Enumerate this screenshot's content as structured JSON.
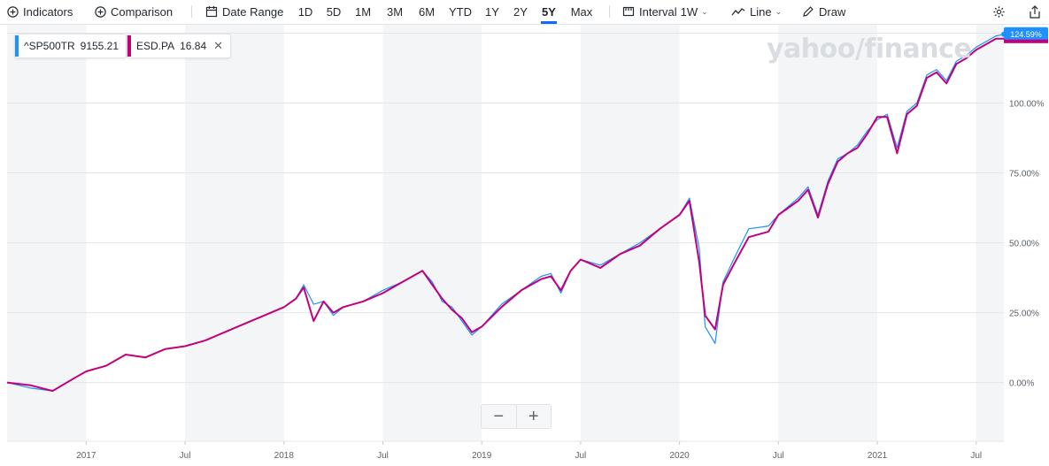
{
  "toolbar": {
    "indicators": "Indicators",
    "comparison": "Comparison",
    "date_range": "Date Range",
    "ranges": [
      "1D",
      "5D",
      "1M",
      "3M",
      "6M",
      "YTD",
      "1Y",
      "2Y",
      "5Y",
      "Max"
    ],
    "active_range": "5Y",
    "interval": "Interval",
    "interval_value": "1W",
    "chart_type": "Line",
    "draw": "Draw"
  },
  "legend": [
    {
      "symbol": "^SP500TR",
      "value": "9155.21",
      "color": "#1e90ff"
    },
    {
      "symbol": "ESD.PA",
      "value": "16.84",
      "color": "#c2007c"
    }
  ],
  "watermark": "yahoo/finance",
  "zoom": {
    "minus": "−",
    "plus": "+"
  },
  "chart_data": {
    "type": "line",
    "yaxis_ticks": [
      "0.00%",
      "25.00%",
      "50.00%",
      "75.00%",
      "100.00%"
    ],
    "xaxis_ticks": [
      "2017",
      "Jul",
      "2018",
      "Jul",
      "2019",
      "Jul",
      "2020",
      "Jul",
      "2021",
      "Jul"
    ],
    "ylim": [
      -21,
      128
    ],
    "xlim": [
      2016.6,
      2021.64
    ],
    "last_label": "124.59%",
    "series": [
      {
        "name": "^SP500TR",
        "color": "#1e90ff",
        "x": [
          2016.6,
          2016.72,
          2016.83,
          2016.95,
          2017.0,
          2017.1,
          2017.2,
          2017.3,
          2017.4,
          2017.5,
          2017.6,
          2017.7,
          2017.8,
          2017.9,
          2018.0,
          2018.06,
          2018.1,
          2018.15,
          2018.2,
          2018.25,
          2018.3,
          2018.4,
          2018.5,
          2018.6,
          2018.7,
          2018.75,
          2018.8,
          2018.85,
          2018.9,
          2018.95,
          2019.0,
          2019.1,
          2019.2,
          2019.3,
          2019.35,
          2019.4,
          2019.45,
          2019.5,
          2019.6,
          2019.7,
          2019.8,
          2019.9,
          2020.0,
          2020.05,
          2020.1,
          2020.13,
          2020.18,
          2020.22,
          2020.28,
          2020.35,
          2020.45,
          2020.5,
          2020.6,
          2020.65,
          2020.7,
          2020.75,
          2020.8,
          2020.85,
          2020.9,
          2020.95,
          2021.0,
          2021.05,
          2021.1,
          2021.15,
          2021.2,
          2021.25,
          2021.3,
          2021.35,
          2021.4,
          2021.45,
          2021.5,
          2021.55,
          2021.6,
          2021.64
        ],
        "values": [
          0,
          -2,
          -3,
          2,
          4,
          6,
          10,
          9,
          12,
          13,
          15,
          18,
          21,
          24,
          27,
          30,
          35,
          28,
          29,
          24,
          27,
          29,
          33,
          36,
          40,
          36,
          29,
          27,
          22,
          17,
          20,
          28,
          33,
          38,
          39,
          32,
          40,
          44,
          42,
          46,
          50,
          55,
          60,
          66,
          48,
          20,
          14,
          36,
          45,
          55,
          56,
          60,
          66,
          70,
          60,
          72,
          80,
          82,
          85,
          90,
          94,
          96,
          84,
          97,
          100,
          110,
          112,
          108,
          115,
          117,
          120,
          122,
          124,
          124.59
        ]
      },
      {
        "name": "ESD.PA",
        "color": "#c2007c",
        "x": [
          2016.6,
          2016.72,
          2016.83,
          2016.95,
          2017.0,
          2017.1,
          2017.2,
          2017.3,
          2017.4,
          2017.5,
          2017.6,
          2017.7,
          2017.8,
          2017.9,
          2018.0,
          2018.06,
          2018.1,
          2018.15,
          2018.2,
          2018.25,
          2018.3,
          2018.4,
          2018.5,
          2018.6,
          2018.7,
          2018.75,
          2018.8,
          2018.85,
          2018.9,
          2018.95,
          2019.0,
          2019.1,
          2019.2,
          2019.3,
          2019.35,
          2019.4,
          2019.45,
          2019.5,
          2019.6,
          2019.7,
          2019.8,
          2019.9,
          2020.0,
          2020.05,
          2020.1,
          2020.13,
          2020.18,
          2020.22,
          2020.28,
          2020.35,
          2020.45,
          2020.5,
          2020.6,
          2020.65,
          2020.7,
          2020.75,
          2020.8,
          2020.85,
          2020.9,
          2020.95,
          2021.0,
          2021.05,
          2021.1,
          2021.15,
          2021.2,
          2021.25,
          2021.3,
          2021.35,
          2021.4,
          2021.45,
          2021.5,
          2021.55,
          2021.6,
          2021.64
        ],
        "values": [
          0,
          -1,
          -3,
          2,
          4,
          6,
          10,
          9,
          12,
          13,
          15,
          18,
          21,
          24,
          27,
          30,
          34,
          22,
          29,
          25,
          27,
          29,
          32,
          36,
          40,
          35,
          30,
          26,
          23,
          18,
          20,
          27,
          33,
          37,
          38,
          33,
          40,
          44,
          41,
          46,
          49,
          55,
          60,
          65,
          43,
          24,
          19,
          35,
          43,
          52,
          54,
          60,
          65,
          69,
          59,
          71,
          79,
          82,
          84,
          89,
          95,
          95,
          82,
          96,
          99,
          109,
          111,
          107,
          114,
          116,
          119,
          121,
          123,
          123
        ]
      }
    ]
  }
}
